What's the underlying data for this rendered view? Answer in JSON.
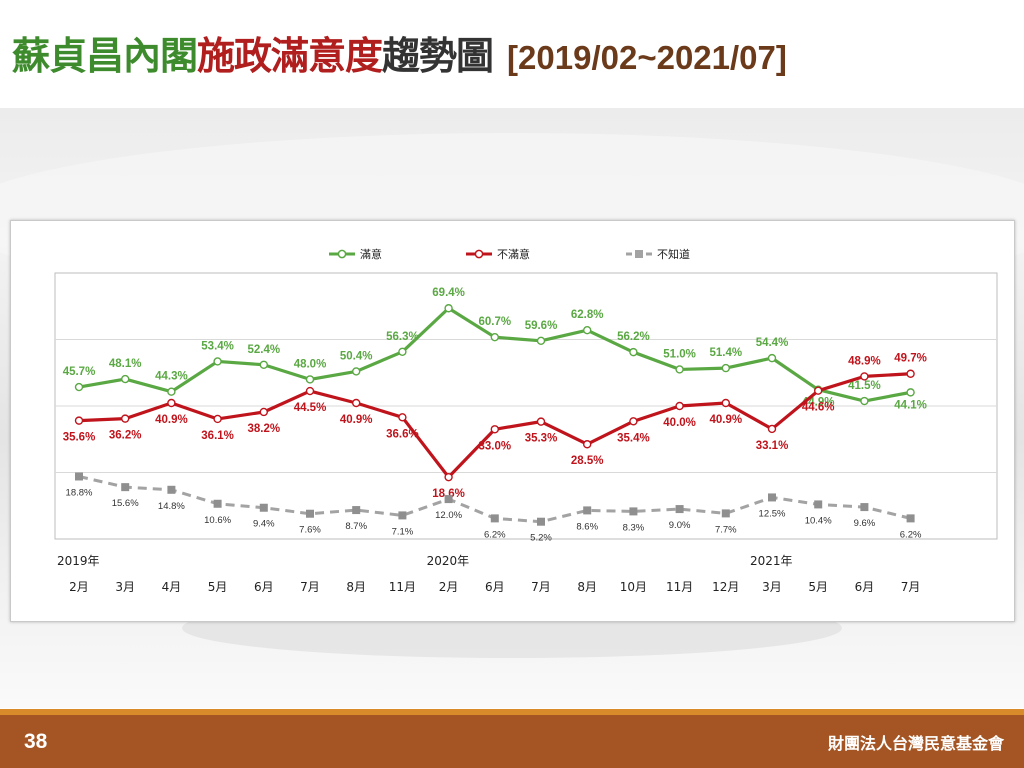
{
  "slide": {
    "title_part1": "蘇貞昌內閣",
    "title_part2": "施政滿意度",
    "title_part3": "趨勢圖",
    "title_range": "[2019/02~2021/07]",
    "page_number": "38",
    "organization": "財團法人台灣民意基金會"
  },
  "chart_data": {
    "type": "line",
    "x": [
      "2月",
      "3月",
      "4月",
      "5月",
      "6月",
      "7月",
      "8月",
      "11月",
      "2月",
      "6月",
      "7月",
      "8月",
      "10月",
      "11月",
      "12月",
      "3月",
      "5月",
      "6月",
      "7月"
    ],
    "year_markers": [
      {
        "label": "2019年",
        "index": 0
      },
      {
        "label": "2020年",
        "index": 8
      },
      {
        "label": "2021年",
        "index": 15
      }
    ],
    "series": [
      {
        "name": "滿意",
        "color": "#5aa843",
        "dashed": false,
        "values": [
          45.7,
          48.1,
          44.3,
          53.4,
          52.4,
          48.0,
          50.4,
          56.3,
          69.4,
          60.7,
          59.6,
          62.8,
          56.2,
          51.0,
          51.4,
          54.4,
          44.9,
          41.5,
          44.1
        ],
        "labels": [
          "45.7%",
          "48.1%",
          "44.3%",
          "53.4%",
          "52.4%",
          "48.0%",
          "50.4%",
          "56.3%",
          "69.4%",
          "60.7%",
          "59.6%",
          "62.8%",
          "56.2%",
          "51.0%",
          "51.4%",
          "54.4%",
          "44.9%",
          "41.5%",
          "44.1%"
        ]
      },
      {
        "name": "不滿意",
        "color": "#c0141c",
        "dashed": false,
        "values": [
          35.6,
          36.2,
          40.9,
          36.1,
          38.2,
          44.5,
          40.9,
          36.6,
          18.6,
          33.0,
          35.3,
          28.5,
          35.4,
          40.0,
          40.9,
          33.1,
          44.6,
          48.9,
          49.7
        ],
        "labels": [
          "35.6%",
          "36.2%",
          "40.9%",
          "36.1%",
          "38.2%",
          "44.5%",
          "40.9%",
          "36.6%",
          "18.6%",
          "33.0%",
          "35.3%",
          "28.5%",
          "35.4%",
          "40.0%",
          "40.9%",
          "33.1%",
          "44.6%",
          "48.9%",
          "49.7%"
        ]
      },
      {
        "name": "不知道",
        "color": "#a3a3a3",
        "dashed": true,
        "values": [
          18.8,
          15.6,
          14.8,
          10.6,
          9.4,
          7.6,
          8.7,
          7.1,
          12.0,
          6.2,
          5.2,
          8.6,
          8.3,
          9.0,
          7.7,
          12.5,
          10.4,
          9.6,
          6.2
        ],
        "labels": [
          "18.8%",
          "15.6%",
          "14.8%",
          "10.6%",
          "9.4%",
          "7.6%",
          "8.7%",
          "7.1%",
          "12.0%",
          "6.2%",
          "5.2%",
          "8.6%",
          "8.3%",
          "9.0%",
          "7.7%",
          "12.5%",
          "10.4%",
          "9.6%",
          "6.2%"
        ]
      }
    ],
    "ylim": [
      0,
      80
    ],
    "grid": true,
    "legend_position": "top-center"
  }
}
